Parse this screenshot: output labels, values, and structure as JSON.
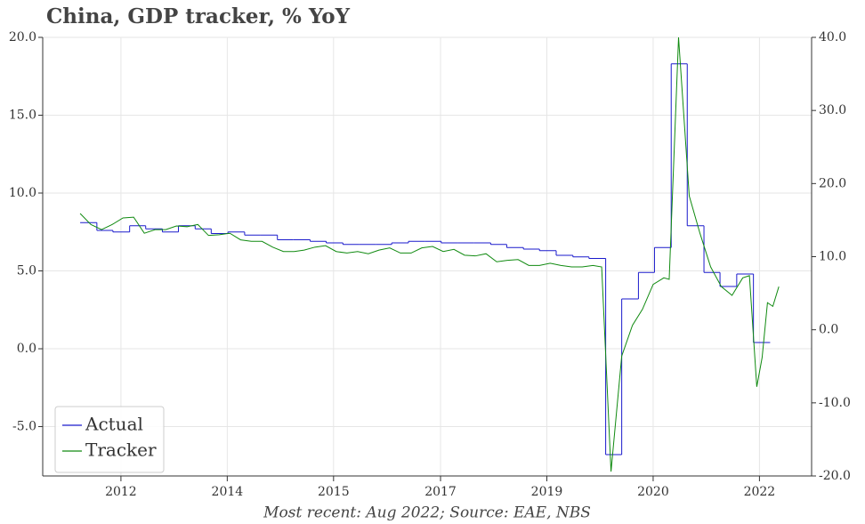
{
  "chart_data": {
    "type": "line",
    "title": "China, GDP tracker, % YoY",
    "caption": "Most recent: Aug 2022; Source: EAE, NBS",
    "grid": true,
    "legend": "lower left",
    "xlim": [
      2011.35,
      2022.85
    ],
    "xticks": [
      {
        "value": 2012.52,
        "label": "2012"
      },
      {
        "value": 2014.11,
        "label": "2014"
      },
      {
        "value": 2015.7,
        "label": "2015"
      },
      {
        "value": 2017.3,
        "label": "2017"
      },
      {
        "value": 2018.89,
        "label": "2019"
      },
      {
        "value": 2020.48,
        "label": "2020"
      },
      {
        "value": 2022.07,
        "label": "2022"
      }
    ],
    "ylim": [
      -8.17,
      20
    ],
    "yticks": [
      {
        "value": -5,
        "label": "-5.0"
      },
      {
        "value": 0,
        "label": "0.0"
      },
      {
        "value": 5,
        "label": "5.0"
      },
      {
        "value": 10,
        "label": "10.0"
      },
      {
        "value": 15,
        "label": "15.0"
      },
      {
        "value": 20,
        "label": "20.0"
      }
    ],
    "y2lim": [
      -20,
      40
    ],
    "y2ticks": [
      {
        "value": -20,
        "label": "-20.0"
      },
      {
        "value": -10,
        "label": "-10.0"
      },
      {
        "value": 0,
        "label": "0.0"
      },
      {
        "value": 10,
        "label": "10.0"
      },
      {
        "value": 20,
        "label": "20.0"
      },
      {
        "value": 30,
        "label": "30.0"
      },
      {
        "value": 40,
        "label": "40.0"
      }
    ],
    "series": [
      {
        "name": "Actual",
        "color": "#1a1acc",
        "step": true,
        "x": [
          2011.91,
          2012.16,
          2012.4,
          2012.65,
          2012.89,
          2013.14,
          2013.38,
          2013.63,
          2013.87,
          2014.12,
          2014.37,
          2014.61,
          2014.86,
          2015.1,
          2015.35,
          2015.59,
          2015.84,
          2016.08,
          2016.33,
          2016.57,
          2016.82,
          2017.07,
          2017.31,
          2017.56,
          2017.8,
          2018.05,
          2018.29,
          2018.54,
          2018.78,
          2019.03,
          2019.28,
          2019.52,
          2019.77,
          2020.01,
          2020.26,
          2020.5,
          2020.75,
          2020.99,
          2021.24,
          2021.48,
          2021.73,
          2021.98
        ],
        "values": [
          8.1,
          7.6,
          7.5,
          7.9,
          7.7,
          7.5,
          7.9,
          7.7,
          7.4,
          7.5,
          7.3,
          7.3,
          7.0,
          7.0,
          6.9,
          6.8,
          6.7,
          6.7,
          6.7,
          6.8,
          6.9,
          6.9,
          6.8,
          6.8,
          6.8,
          6.7,
          6.5,
          6.4,
          6.3,
          6.0,
          5.9,
          5.8,
          -6.8,
          3.2,
          4.9,
          6.5,
          18.3,
          7.9,
          4.9,
          4.0,
          4.8,
          0.4
        ]
      },
      {
        "name": "Tracker",
        "color": "#108a10",
        "axis": "y2",
        "x": [
          2011.91,
          2012.07,
          2012.23,
          2012.39,
          2012.55,
          2012.71,
          2012.87,
          2013.03,
          2013.19,
          2013.35,
          2013.51,
          2013.67,
          2013.83,
          2013.99,
          2014.15,
          2014.31,
          2014.47,
          2014.63,
          2014.79,
          2014.95,
          2015.11,
          2015.26,
          2015.42,
          2015.58,
          2015.74,
          2015.9,
          2016.06,
          2016.22,
          2016.38,
          2016.54,
          2016.7,
          2016.86,
          2017.02,
          2017.18,
          2017.34,
          2017.5,
          2017.66,
          2017.82,
          2017.98,
          2018.14,
          2018.3,
          2018.46,
          2018.62,
          2018.78,
          2018.94,
          2019.1,
          2019.26,
          2019.42,
          2019.58,
          2019.71,
          2019.85,
          2020.01,
          2020.17,
          2020.32,
          2020.48,
          2020.64,
          2020.72,
          2020.86,
          2021.02,
          2021.18,
          2021.34,
          2021.5,
          2021.66,
          2021.82,
          2021.92,
          2022.03,
          2022.11,
          2022.19,
          2022.27,
          2022.36
        ],
        "values": [
          15.9,
          14.4,
          13.7,
          14.4,
          15.3,
          15.4,
          13.2,
          13.7,
          13.7,
          14.2,
          14.1,
          14.4,
          12.9,
          13.0,
          13.2,
          12.3,
          12.1,
          12.1,
          11.3,
          10.7,
          10.7,
          10.9,
          11.3,
          11.5,
          10.7,
          10.5,
          10.7,
          10.4,
          10.9,
          11.2,
          10.5,
          10.5,
          11.2,
          11.4,
          10.7,
          11.0,
          10.2,
          10.1,
          10.4,
          9.3,
          9.5,
          9.6,
          8.8,
          8.8,
          9.1,
          8.8,
          8.6,
          8.6,
          8.8,
          8.6,
          -19.4,
          -3.6,
          0.6,
          2.8,
          6.2,
          7.1,
          6.9,
          40.0,
          18.3,
          13.2,
          8.6,
          5.9,
          4.7,
          7.1,
          7.4,
          -7.8,
          -3.8,
          3.7,
          3.2,
          5.9
        ]
      }
    ]
  }
}
